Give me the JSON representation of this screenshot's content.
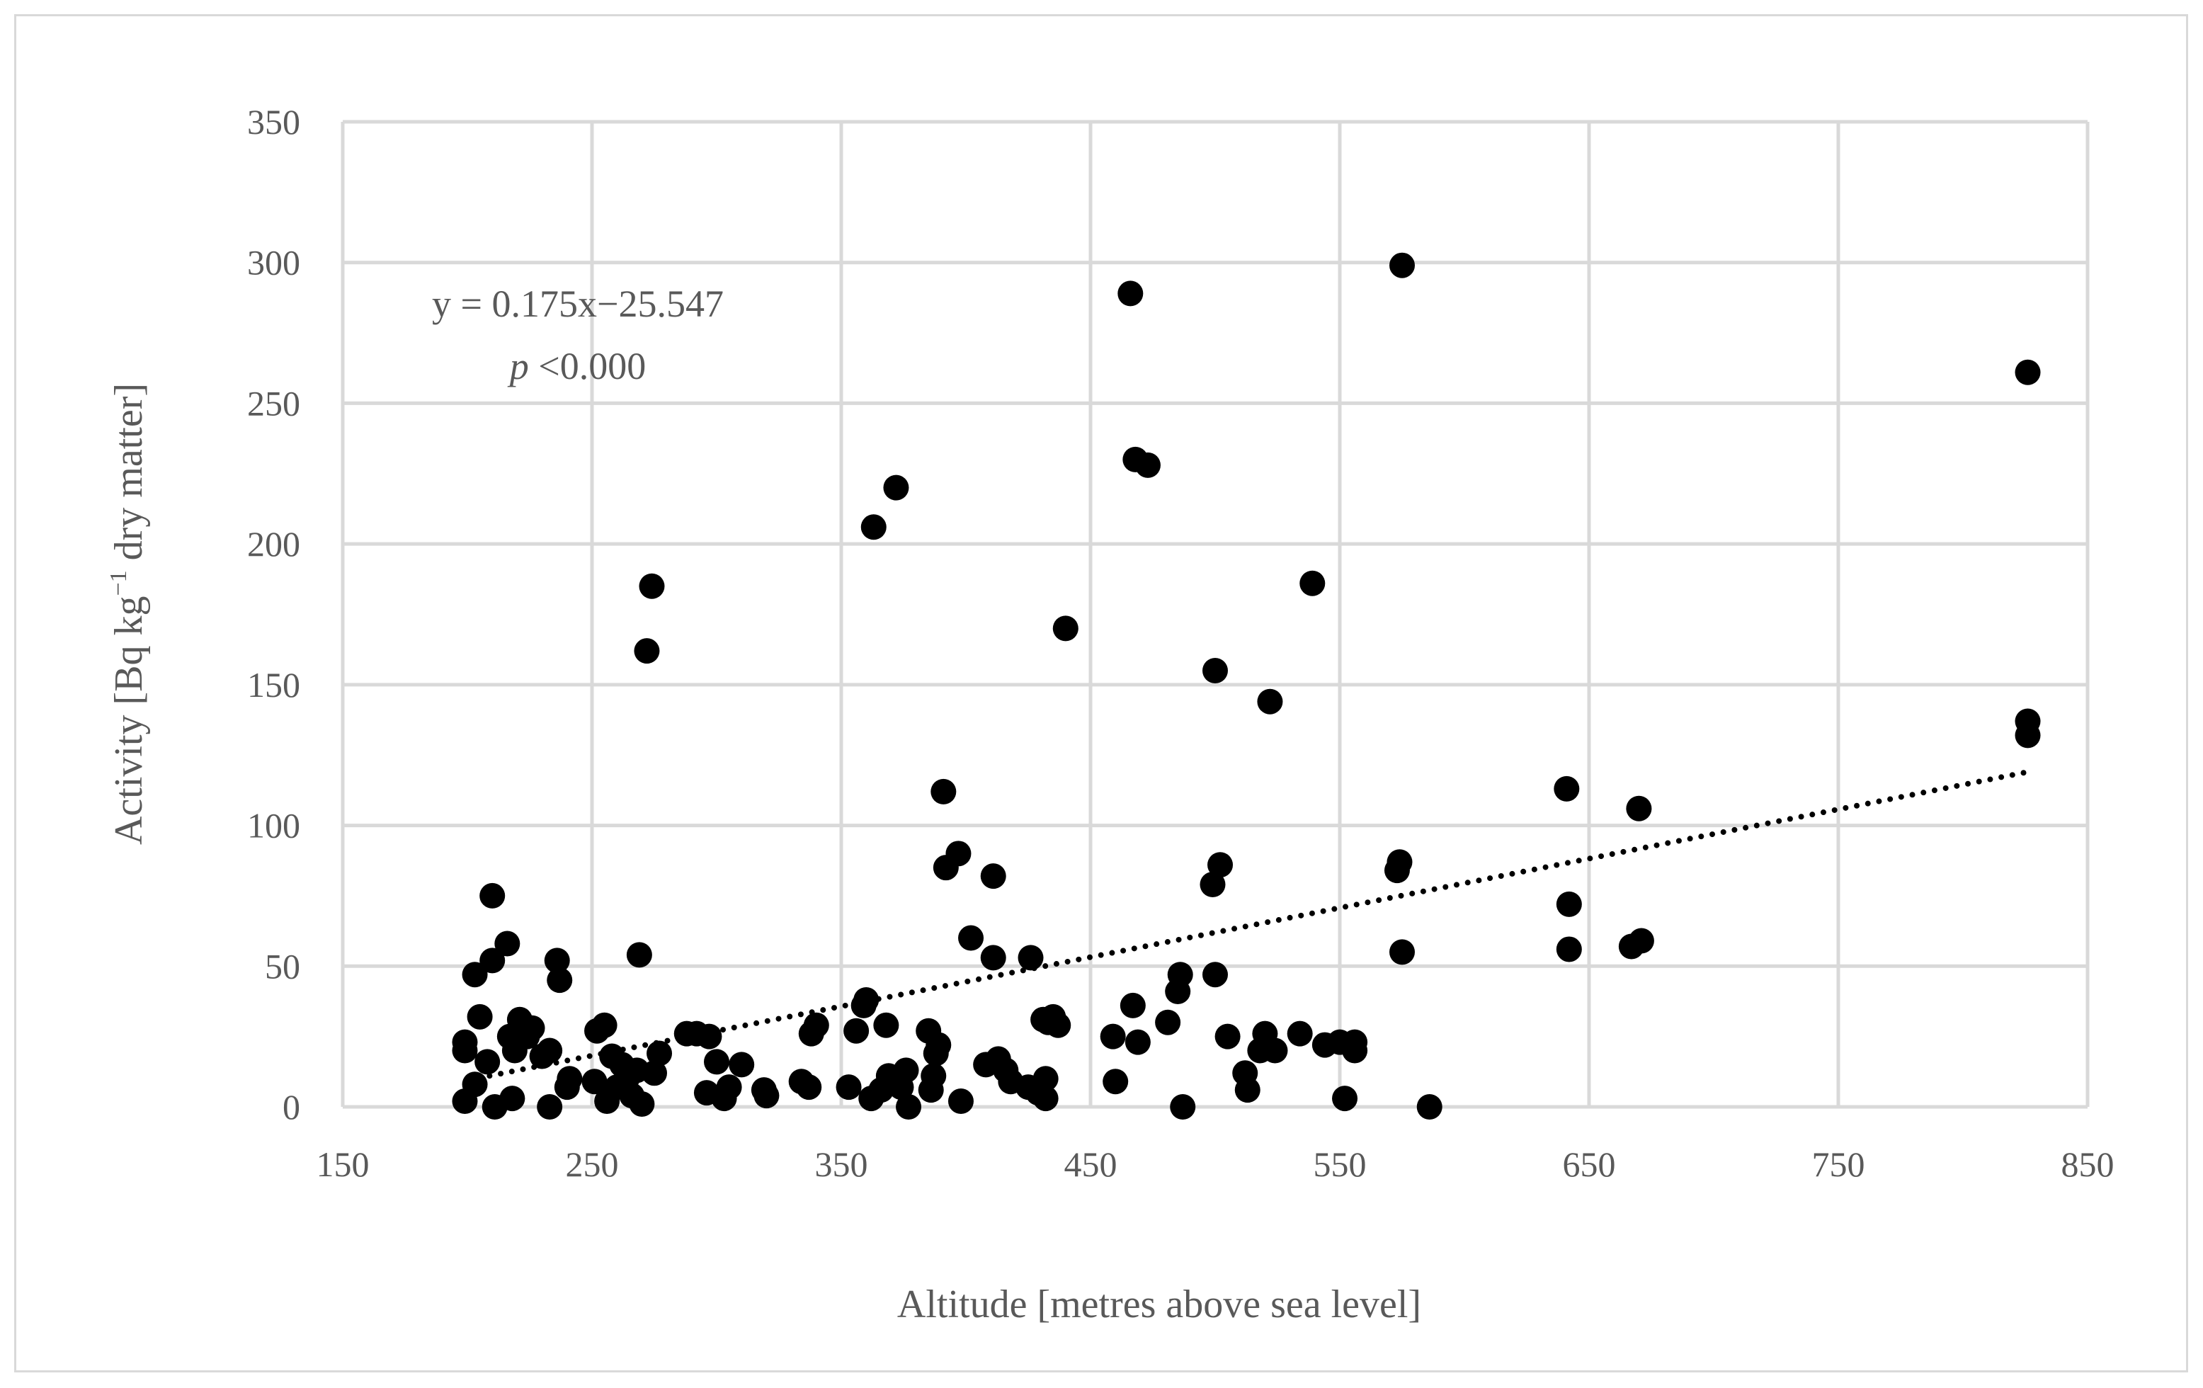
{
  "chart_data": {
    "type": "scatter",
    "title": "",
    "xlabel": "Altitude [metres above sea level]",
    "ylabel_prefix": "Activity [Bq kg",
    "ylabel_sup": "−1",
    "ylabel_suffix": " dry matter]",
    "xlim": [
      150,
      850
    ],
    "ylim": [
      0,
      350
    ],
    "xticks": [
      "150",
      "250",
      "350",
      "450",
      "550",
      "650",
      "750",
      "850"
    ],
    "yticks": [
      "0",
      "50",
      "100",
      "150",
      "200",
      "250",
      "300",
      "350"
    ],
    "grid": true,
    "colors": {
      "marker": "#000000",
      "grid": "#d9d9d9",
      "text": "#595959"
    },
    "annotation": {
      "equation": "y = 0.175x−25.547",
      "p_symbol": "p",
      "p_rest": " <0.000"
    },
    "trendline": {
      "slope": 0.175,
      "intercept": -25.547,
      "x_range": [
        200,
        825
      ],
      "style": "dotted"
    },
    "points": [
      [
        199,
        2
      ],
      [
        199,
        20
      ],
      [
        199,
        23
      ],
      [
        203,
        47
      ],
      [
        203,
        8
      ],
      [
        205,
        32
      ],
      [
        208,
        16
      ],
      [
        210,
        75
      ],
      [
        210,
        52
      ],
      [
        211,
        0
      ],
      [
        216,
        58
      ],
      [
        217,
        25
      ],
      [
        218,
        3
      ],
      [
        219,
        20
      ],
      [
        221,
        31
      ],
      [
        224,
        25
      ],
      [
        226,
        28
      ],
      [
        230,
        18
      ],
      [
        233,
        0
      ],
      [
        233,
        20
      ],
      [
        236,
        52
      ],
      [
        237,
        45
      ],
      [
        240,
        7
      ],
      [
        241,
        10
      ],
      [
        251,
        9
      ],
      [
        252,
        27
      ],
      [
        255,
        29
      ],
      [
        256,
        2
      ],
      [
        258,
        18
      ],
      [
        260,
        7
      ],
      [
        262,
        15
      ],
      [
        264,
        10
      ],
      [
        266,
        4
      ],
      [
        268,
        13
      ],
      [
        269,
        54
      ],
      [
        270,
        1
      ],
      [
        272,
        162
      ],
      [
        274,
        185
      ],
      [
        275,
        12
      ],
      [
        277,
        19
      ],
      [
        288,
        26
      ],
      [
        292,
        26
      ],
      [
        296,
        5
      ],
      [
        297,
        25
      ],
      [
        300,
        16
      ],
      [
        303,
        3
      ],
      [
        305,
        7
      ],
      [
        310,
        15
      ],
      [
        319,
        6
      ],
      [
        320,
        4
      ],
      [
        334,
        9
      ],
      [
        337,
        7
      ],
      [
        338,
        26
      ],
      [
        340,
        29
      ],
      [
        353,
        7
      ],
      [
        356,
        27
      ],
      [
        359,
        36
      ],
      [
        360,
        38
      ],
      [
        362,
        3
      ],
      [
        363,
        206
      ],
      [
        366,
        6
      ],
      [
        368,
        29
      ],
      [
        369,
        11
      ],
      [
        372,
        220
      ],
      [
        374,
        7
      ],
      [
        376,
        13
      ],
      [
        377,
        0
      ],
      [
        385,
        27
      ],
      [
        386,
        6
      ],
      [
        387,
        11
      ],
      [
        388,
        19
      ],
      [
        389,
        22
      ],
      [
        391,
        112
      ],
      [
        392,
        85
      ],
      [
        397,
        90
      ],
      [
        398,
        2
      ],
      [
        402,
        60
      ],
      [
        408,
        15
      ],
      [
        411,
        82
      ],
      [
        411,
        53
      ],
      [
        413,
        17
      ],
      [
        416,
        13
      ],
      [
        418,
        9
      ],
      [
        425,
        7
      ],
      [
        426,
        53
      ],
      [
        429,
        5
      ],
      [
        431,
        31
      ],
      [
        432,
        3
      ],
      [
        432,
        10
      ],
      [
        433,
        30
      ],
      [
        435,
        32
      ],
      [
        437,
        29
      ],
      [
        440,
        170
      ],
      [
        459,
        25
      ],
      [
        460,
        9
      ],
      [
        466,
        289
      ],
      [
        467,
        36
      ],
      [
        468,
        230
      ],
      [
        469,
        23
      ],
      [
        473,
        228
      ],
      [
        481,
        30
      ],
      [
        485,
        41
      ],
      [
        486,
        47
      ],
      [
        487,
        0
      ],
      [
        499,
        79
      ],
      [
        500,
        155
      ],
      [
        500,
        47
      ],
      [
        502,
        86
      ],
      [
        505,
        25
      ],
      [
        512,
        12
      ],
      [
        513,
        6
      ],
      [
        518,
        20
      ],
      [
        520,
        26
      ],
      [
        522,
        144
      ],
      [
        524,
        20
      ],
      [
        534,
        26
      ],
      [
        539,
        186
      ],
      [
        544,
        22
      ],
      [
        550,
        23
      ],
      [
        552,
        3
      ],
      [
        556,
        23
      ],
      [
        556,
        20
      ],
      [
        573,
        84
      ],
      [
        574,
        87
      ],
      [
        575,
        299
      ],
      [
        575,
        55
      ],
      [
        586,
        0
      ],
      [
        641,
        113
      ],
      [
        642,
        72
      ],
      [
        642,
        56
      ],
      [
        667,
        57
      ],
      [
        670,
        106
      ],
      [
        671,
        59
      ],
      [
        826,
        261
      ],
      [
        826,
        137
      ],
      [
        826,
        132
      ]
    ]
  }
}
